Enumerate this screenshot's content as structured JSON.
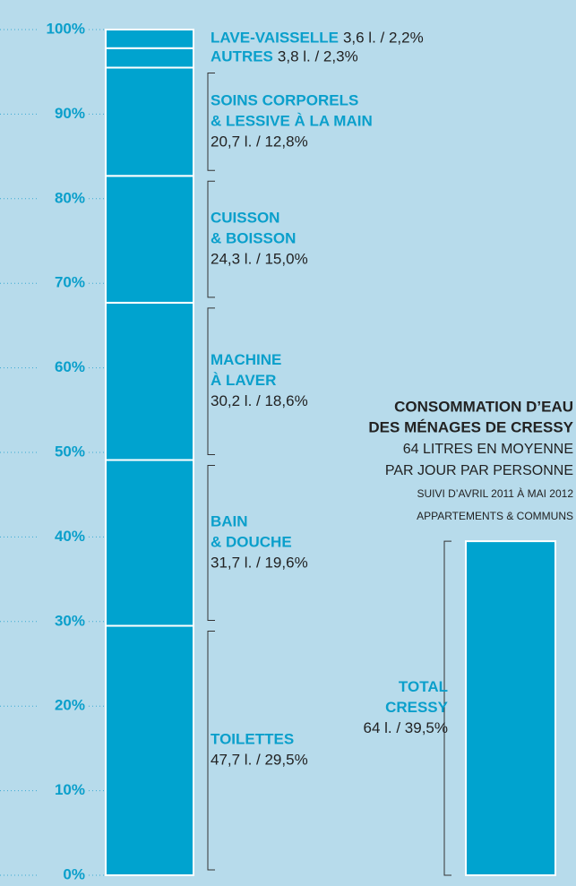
{
  "chart_data": {
    "type": "stacked-bar",
    "title": [
      "CONSOMMATION D’EAU",
      "DES MÉNAGES DE CRESSY"
    ],
    "subtitle": [
      "64 LITRES EN MOYENNE",
      "PAR JOUR PAR PERSONNE"
    ],
    "notes": [
      "SUIVI D’AVRIL 2011 À MAI 2012",
      "APPARTEMENTS & COMMUNS"
    ],
    "categories": [
      [
        "TOILETTES"
      ],
      [
        "BAIN",
        "& DOUCHE"
      ],
      [
        "MACHINE",
        "À LAVER"
      ],
      [
        "CUISSON",
        "& BOISSON"
      ],
      [
        "SOINS CORPORELS",
        "& LESSIVE À LA MAIN"
      ],
      [
        "AUTRES"
      ],
      [
        "LAVE-VAISSELLE"
      ]
    ],
    "values": [
      29.5,
      19.6,
      18.6,
      15.0,
      12.8,
      2.3,
      2.2
    ],
    "value_labels": [
      "47,7 l. / 29,5%",
      "31,7 l. / 19,6%",
      "30,2 l. / 18,6%",
      "24,3 l. / 15,0%",
      "20,7 l. / 12,8%",
      "3,8 l. / 2,3%",
      "3,6 l. / 2,2%"
    ],
    "total": {
      "name": [
        "TOTAL",
        "CRESSY"
      ],
      "value": 39.5,
      "value_label": "64 l. / 39,5%"
    },
    "color": "#00a3cf",
    "ylim": [
      0,
      100
    ],
    "yticks": [
      {
        "value": 0,
        "label": "0%"
      },
      {
        "value": 10,
        "label": "10%"
      },
      {
        "value": 20,
        "label": "20%"
      },
      {
        "value": 30,
        "label": "30%"
      },
      {
        "value": 40,
        "label": "40%"
      },
      {
        "value": 50,
        "label": "50%"
      },
      {
        "value": 60,
        "label": "60%"
      },
      {
        "value": 70,
        "label": "70%"
      },
      {
        "value": 80,
        "label": "80%"
      },
      {
        "value": 90,
        "label": "90%"
      },
      {
        "value": 100,
        "label": "100%"
      }
    ],
    "grid": true
  }
}
